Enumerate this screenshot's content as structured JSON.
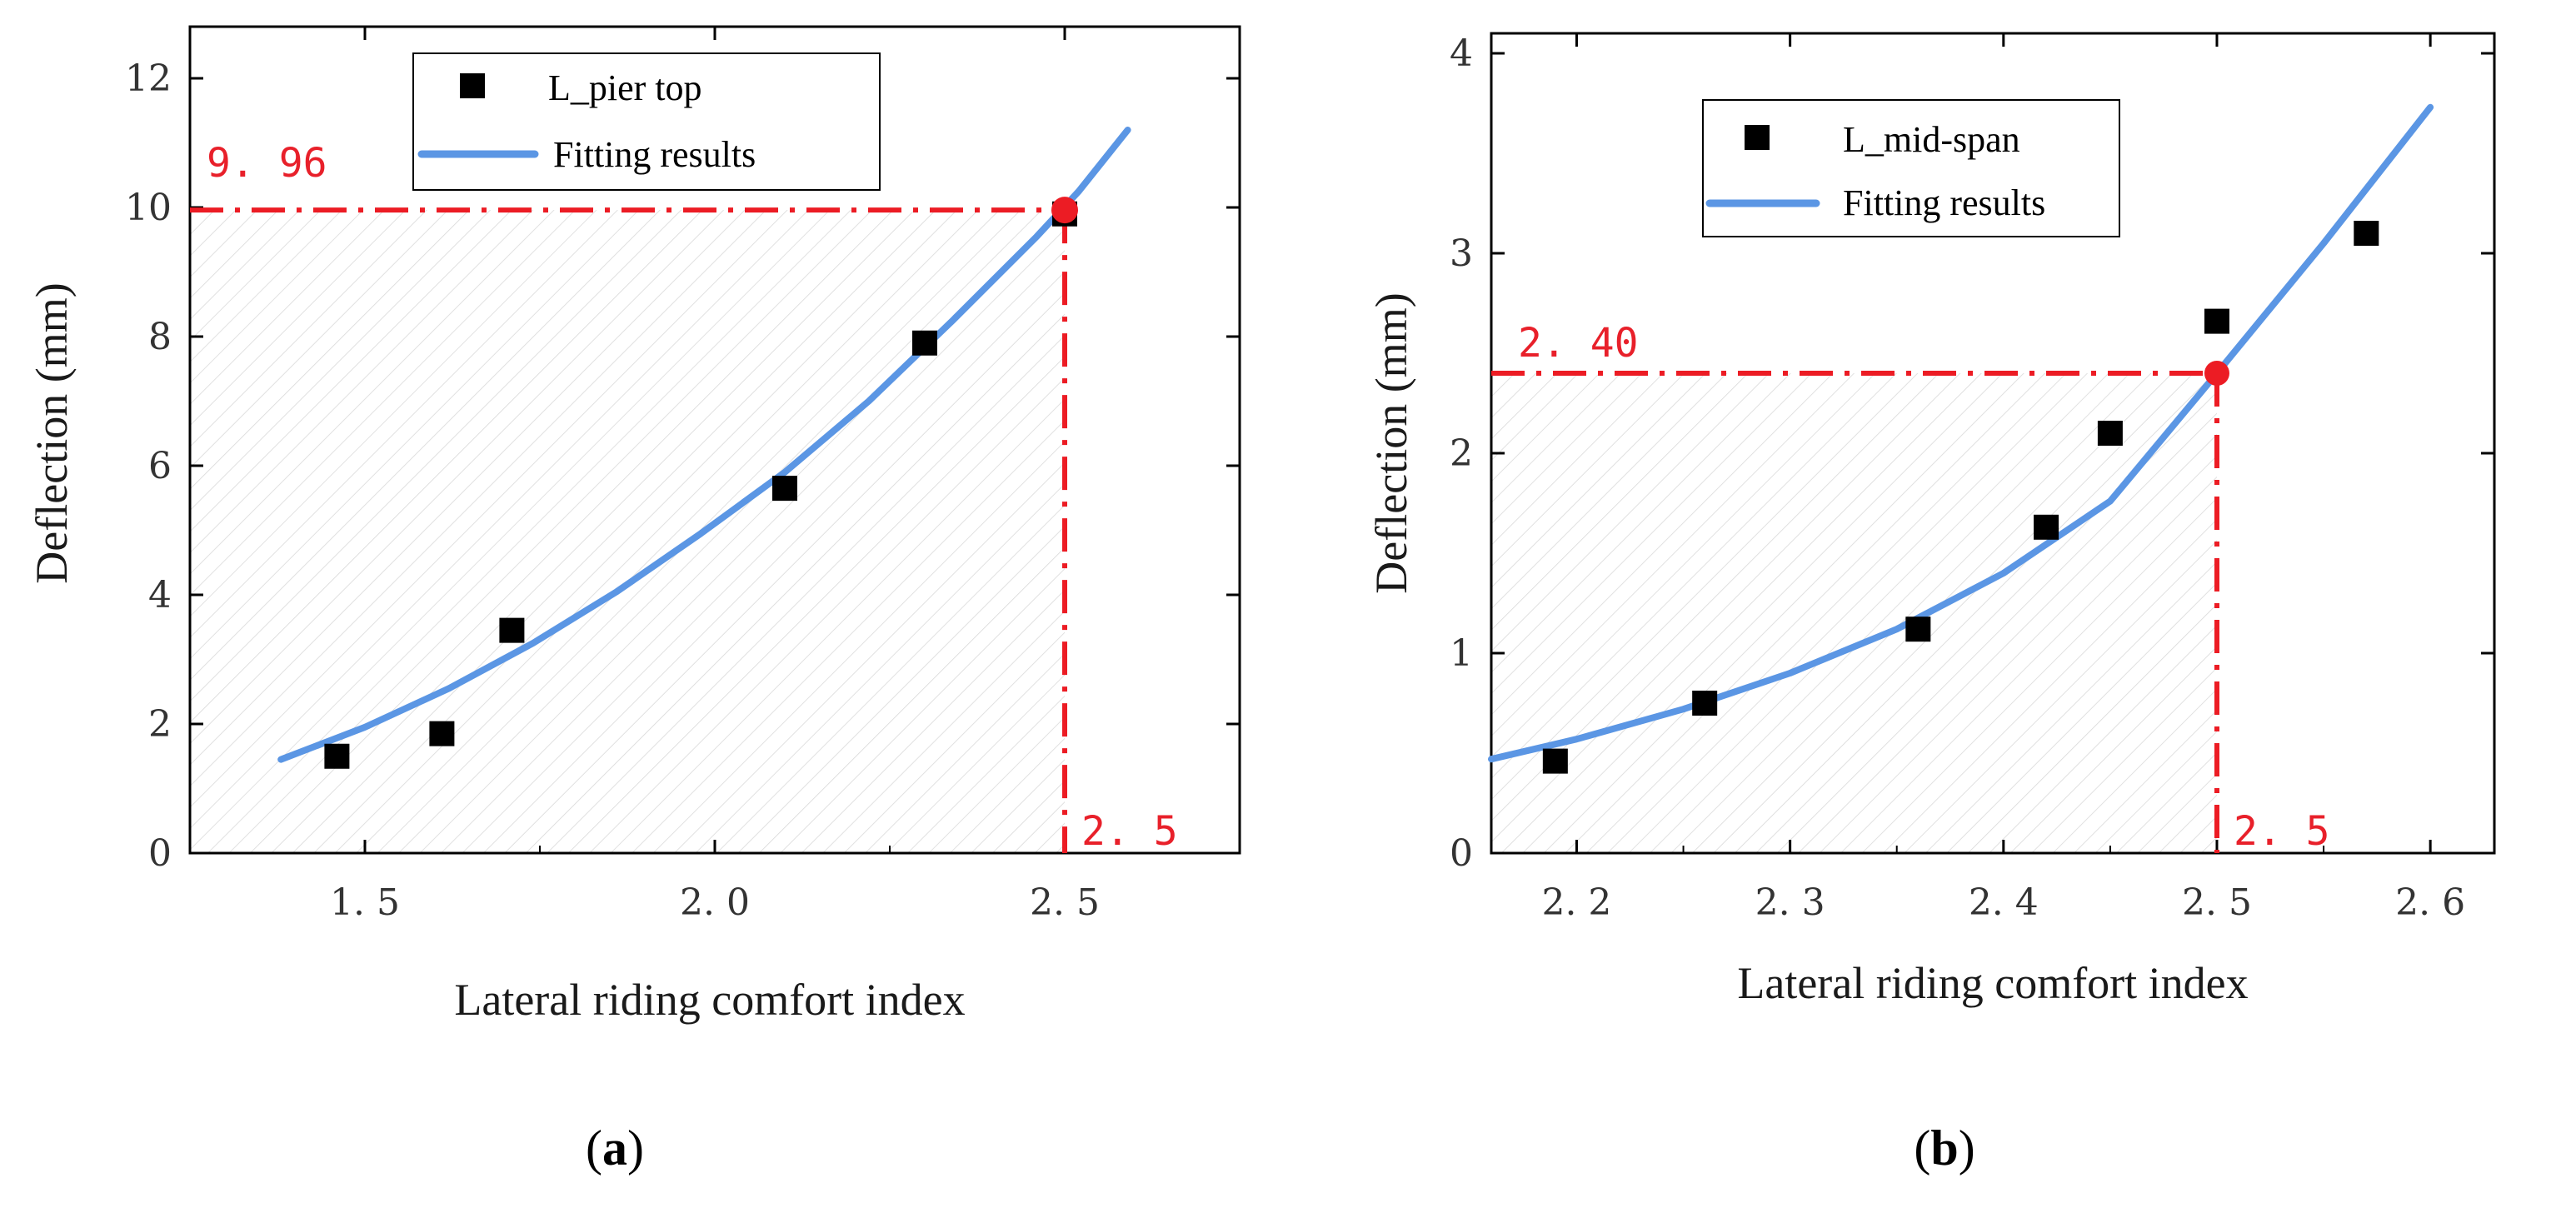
{
  "colors": {
    "fit": "#5b96e4",
    "marker": "#000000",
    "guide": "#ec1c24",
    "axis": "#000000",
    "hatch": "#d2d2d2"
  },
  "chart_data": [
    {
      "type": "scatter",
      "caption": "(a)",
      "caption_letter": "a",
      "xlabel": "Lateral riding comfort index",
      "ylabel": "Deflection (mm)",
      "xlim": [
        1.25,
        2.75
      ],
      "ylim": [
        0,
        12.8
      ],
      "xticks": [
        1.5,
        2.0,
        2.5
      ],
      "xtick_labels": [
        "1. 5",
        "2. 0",
        "2. 5"
      ],
      "yticks": [
        0,
        2,
        4,
        6,
        8,
        10,
        12
      ],
      "ytick_labels": [
        "0",
        "2",
        "4",
        "6",
        "8",
        "10",
        "12"
      ],
      "legend": {
        "position": "top-center",
        "entries": [
          "L_pier top",
          "Fitting results"
        ]
      },
      "series": [
        {
          "name": "L_pier top",
          "kind": "scatter",
          "x": [
            1.46,
            1.61,
            1.71,
            2.1,
            2.3,
            2.5
          ],
          "y": [
            1.5,
            1.85,
            3.45,
            5.65,
            7.9,
            9.9
          ]
        },
        {
          "name": "Fitting results",
          "kind": "line",
          "x": [
            1.38,
            1.5,
            1.62,
            1.74,
            1.86,
            1.98,
            2.1,
            2.22,
            2.34,
            2.46,
            2.52,
            2.59
          ],
          "y": [
            1.45,
            1.95,
            2.55,
            3.25,
            4.05,
            4.95,
            5.9,
            7.0,
            8.25,
            9.55,
            10.25,
            11.2
          ]
        }
      ],
      "highlight": {
        "x": 2.5,
        "y": 9.96,
        "x_label": "2. 5",
        "y_label": "9. 96"
      }
    },
    {
      "type": "scatter",
      "caption": "(b)",
      "caption_letter": "b",
      "xlabel": "Lateral riding comfort index",
      "ylabel": "Deflection (mm)",
      "xlim": [
        2.16,
        2.63
      ],
      "ylim": [
        0,
        4.1
      ],
      "xticks": [
        2.2,
        2.3,
        2.4,
        2.5,
        2.6
      ],
      "xtick_labels": [
        "2. 2",
        "2. 3",
        "2. 4",
        "2. 5",
        "2. 6"
      ],
      "yticks": [
        0,
        1,
        2,
        3,
        4
      ],
      "ytick_labels": [
        "0",
        "1",
        "2",
        "3",
        "4"
      ],
      "legend": {
        "position": "top-center",
        "entries": [
          "L_mid-span",
          "Fitting results"
        ]
      },
      "series": [
        {
          "name": "L_mid-span",
          "kind": "scatter",
          "x": [
            2.19,
            2.26,
            2.36,
            2.42,
            2.45,
            2.5,
            2.57
          ],
          "y": [
            0.46,
            0.75,
            1.12,
            1.63,
            2.1,
            2.66,
            3.1
          ]
        },
        {
          "name": "Fitting results",
          "kind": "line",
          "x": [
            2.16,
            2.2,
            2.25,
            2.3,
            2.35,
            2.4,
            2.45,
            2.5,
            2.55,
            2.6
          ],
          "y": [
            0.47,
            0.57,
            0.72,
            0.9,
            1.12,
            1.4,
            1.76,
            2.4,
            3.05,
            3.73
          ]
        }
      ],
      "highlight": {
        "x": 2.5,
        "y": 2.4,
        "x_label": "2. 5",
        "y_label": "2. 40"
      }
    }
  ]
}
